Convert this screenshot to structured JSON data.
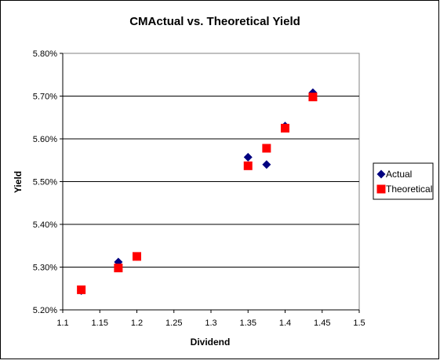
{
  "chart_data": {
    "type": "scatter",
    "title": "CMActual vs. Theoretical Yield",
    "xlabel": "Dividend",
    "ylabel": "Yield",
    "xlim": [
      1.1,
      1.5
    ],
    "ylim": [
      5.2,
      5.8
    ],
    "x_ticks": [
      "1.1",
      "1.15",
      "1.2",
      "1.25",
      "1.3",
      "1.35",
      "1.4",
      "1.45",
      "1.5"
    ],
    "y_ticks": [
      "5.20%",
      "5.30%",
      "5.40%",
      "5.50%",
      "5.60%",
      "5.70%",
      "5.80%"
    ],
    "grid": "horizontal",
    "legend_position": "right",
    "series": [
      {
        "name": "Actual",
        "marker": "diamond",
        "color": "#000080",
        "points": [
          {
            "x": 1.125,
            "y": 5.245
          },
          {
            "x": 1.175,
            "y": 5.312
          },
          {
            "x": 1.2,
            "y": 5.325
          },
          {
            "x": 1.35,
            "y": 5.557
          },
          {
            "x": 1.375,
            "y": 5.54
          },
          {
            "x": 1.4,
            "y": 5.63
          },
          {
            "x": 1.4375,
            "y": 5.708
          }
        ]
      },
      {
        "name": "Theoretical",
        "marker": "square",
        "color": "#ff0000",
        "points": [
          {
            "x": 1.125,
            "y": 5.247
          },
          {
            "x": 1.175,
            "y": 5.298
          },
          {
            "x": 1.2,
            "y": 5.325
          },
          {
            "x": 1.35,
            "y": 5.537
          },
          {
            "x": 1.375,
            "y": 5.578
          },
          {
            "x": 1.4,
            "y": 5.625
          },
          {
            "x": 1.4375,
            "y": 5.698
          }
        ]
      }
    ]
  },
  "colors": {
    "frame_border": "#000000",
    "gridline": "#000000",
    "plot_background": "#ffffff"
  }
}
